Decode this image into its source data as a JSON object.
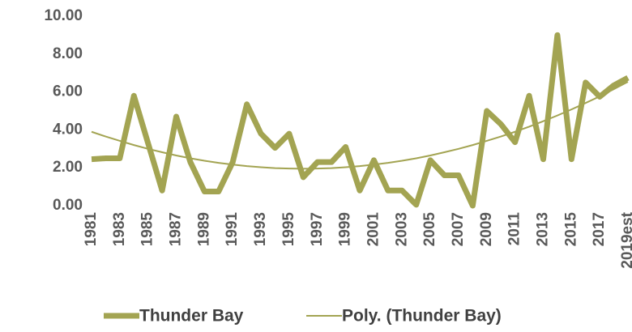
{
  "chart_data": {
    "type": "line",
    "categories": [
      "1981",
      null,
      "1983",
      null,
      "1985",
      null,
      "1987",
      null,
      "1989",
      null,
      "1991",
      null,
      "1993",
      null,
      "1995",
      null,
      "1997",
      null,
      "1999",
      null,
      "2001",
      null,
      "2003",
      null,
      "2005",
      null,
      "2007",
      null,
      "2009",
      null,
      "2011",
      null,
      "2013",
      null,
      "2015",
      null,
      "2017",
      null,
      "2019est"
    ],
    "series": [
      {
        "name": "Thunder Bay",
        "color": "#a3a452",
        "values": [
          2.45,
          2.5,
          2.5,
          5.8,
          3.3,
          0.8,
          4.7,
          2.3,
          0.75,
          0.75,
          2.3,
          5.35,
          3.8,
          3.05,
          3.8,
          1.5,
          2.3,
          2.3,
          3.1,
          0.8,
          2.4,
          0.8,
          0.8,
          0.05,
          2.4,
          1.6,
          1.6,
          0,
          5.0,
          4.3,
          3.35,
          5.8,
          2.45,
          9.0,
          2.45,
          6.5,
          5.75,
          6.35,
          6.75
        ]
      },
      {
        "name": "Poly. (Thunder Bay)",
        "color": "#a3a452",
        "values": [
          3.9,
          3.65,
          3.42,
          3.2,
          3.0,
          2.82,
          2.65,
          2.5,
          2.37,
          2.26,
          2.17,
          2.09,
          2.03,
          1.98,
          1.96,
          1.95,
          1.96,
          1.98,
          2.03,
          2.09,
          2.17,
          2.26,
          2.37,
          2.5,
          2.65,
          2.82,
          3.0,
          3.2,
          3.42,
          3.65,
          3.9,
          4.17,
          4.46,
          4.76,
          5.08,
          5.42,
          5.77,
          6.15,
          6.54
        ]
      }
    ],
    "ylim": [
      0,
      10
    ],
    "yticks": [
      {
        "value": 0,
        "label": "0.00"
      },
      {
        "value": 2,
        "label": "2.00"
      },
      {
        "value": 4,
        "label": "4.00"
      },
      {
        "value": 6,
        "label": "6.00"
      },
      {
        "value": 8,
        "label": "8.00"
      },
      {
        "value": 10,
        "label": "10.00"
      }
    ],
    "grid": false
  }
}
